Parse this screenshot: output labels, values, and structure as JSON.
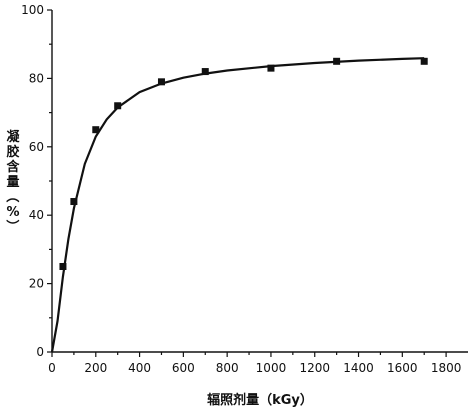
{
  "chart_data": {
    "type": "scatter",
    "title": "",
    "xlabel": "辐照剂量（kGy）",
    "ylabel": "凝胶含量（%）",
    "xlim": [
      0,
      1900
    ],
    "ylim": [
      0,
      100
    ],
    "xticks": [
      0,
      200,
      400,
      600,
      800,
      1000,
      1200,
      1400,
      1600,
      1800
    ],
    "yticks": [
      0,
      20,
      40,
      60,
      80,
      100
    ],
    "grid": false,
    "legend": "none",
    "series": [
      {
        "marker": "square",
        "points": [
          {
            "x": 50,
            "y": 25
          },
          {
            "x": 100,
            "y": 44
          },
          {
            "x": 200,
            "y": 65
          },
          {
            "x": 300,
            "y": 72
          },
          {
            "x": 500,
            "y": 79
          },
          {
            "x": 700,
            "y": 82
          },
          {
            "x": 1000,
            "y": 83
          },
          {
            "x": 1300,
            "y": 85
          },
          {
            "x": 1700,
            "y": 85
          }
        ]
      }
    ],
    "fit_curve": {
      "points": [
        {
          "x": 0,
          "y": 0
        },
        {
          "x": 25,
          "y": 9
        },
        {
          "x": 50,
          "y": 22
        },
        {
          "x": 75,
          "y": 33
        },
        {
          "x": 100,
          "y": 42
        },
        {
          "x": 150,
          "y": 55
        },
        {
          "x": 200,
          "y": 63
        },
        {
          "x": 250,
          "y": 68
        },
        {
          "x": 300,
          "y": 71.5
        },
        {
          "x": 400,
          "y": 76
        },
        {
          "x": 500,
          "y": 78.5
        },
        {
          "x": 600,
          "y": 80.2
        },
        {
          "x": 700,
          "y": 81.4
        },
        {
          "x": 800,
          "y": 82.3
        },
        {
          "x": 1000,
          "y": 83.6
        },
        {
          "x": 1200,
          "y": 84.5
        },
        {
          "x": 1400,
          "y": 85.2
        },
        {
          "x": 1600,
          "y": 85.7
        },
        {
          "x": 1700,
          "y": 85.9
        }
      ]
    }
  }
}
